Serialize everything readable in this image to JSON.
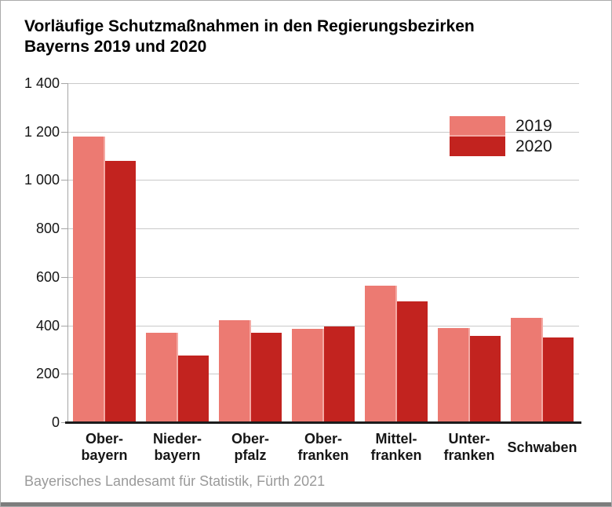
{
  "title": {
    "line1": "Vorläufige Schutzmaßnahmen in den Regierungsbezirken",
    "line2": "Bayerns 2019 und 2020"
  },
  "footer": {
    "source": "Bayerisches Landesamt für Statistik, Fürth 2021"
  },
  "legend": {
    "items": [
      {
        "label": "2019",
        "color": "#ec7a72"
      },
      {
        "label": "2020",
        "color": "#c2231f"
      }
    ],
    "position": "top-right"
  },
  "colors": {
    "bar_2019": "#ec7a72",
    "bar_2019_edge": "#f4a9a3",
    "bar_2020": "#c2231f",
    "gridline": "#c9c9c9",
    "axis": "#a5a5a5",
    "baseline": "#1c1c1c",
    "title_text": "#000000",
    "label_text": "#161616",
    "source_text": "#9a9a9a",
    "frame_border": "#ababab",
    "bottom_bar": "#7d7d7d"
  },
  "chart_data": {
    "type": "bar",
    "title": "Vorläufige Schutzmaßnahmen in den Regierungsbezirken Bayerns 2019 und 2020",
    "source": "Bayerisches Landesamt für Statistik, Fürth 2021",
    "xlabel": "",
    "ylabel": "",
    "ylim": [
      0,
      1400
    ],
    "ytick_step": 200,
    "ytick_labels": [
      "0",
      "200",
      "400",
      "600",
      "800",
      "1 000",
      "1 200",
      "1 400"
    ],
    "grid": true,
    "legend_position": "top-right",
    "categories": [
      {
        "name": "Oberbayern",
        "lines": [
          "Ober-",
          "bayern"
        ]
      },
      {
        "name": "Niederbayern",
        "lines": [
          "Nieder-",
          "bayern"
        ]
      },
      {
        "name": "Oberpfalz",
        "lines": [
          "Ober-",
          "pfalz"
        ]
      },
      {
        "name": "Oberfranken",
        "lines": [
          "Ober-",
          "franken"
        ]
      },
      {
        "name": "Mittelfranken",
        "lines": [
          "Mittel-",
          "franken"
        ]
      },
      {
        "name": "Unterfranken",
        "lines": [
          "Unter-",
          "franken"
        ]
      },
      {
        "name": "Schwaben",
        "lines": [
          "Schwaben"
        ]
      }
    ],
    "series": [
      {
        "name": "2019",
        "color": "#ec7a72",
        "edge": "#f4a9a3",
        "values": [
          1180,
          370,
          420,
          385,
          565,
          390,
          430
        ]
      },
      {
        "name": "2020",
        "color": "#c2231f",
        "edge": null,
        "values": [
          1080,
          275,
          370,
          395,
          500,
          355,
          350
        ]
      }
    ]
  }
}
